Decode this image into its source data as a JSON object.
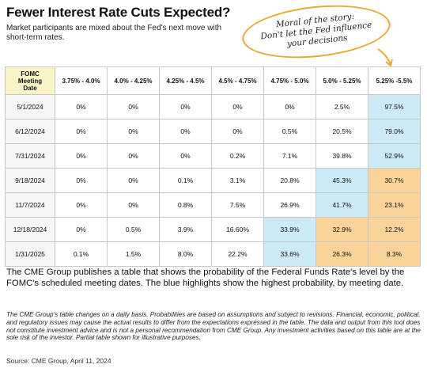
{
  "header": {
    "title": "Fewer Interest Rate Cuts Expected?",
    "subtitle": "Market participants are mixed about the Fed's next move with short-term rates."
  },
  "callout": {
    "line1": "Moral of the story:",
    "line2": "Don't let the Fed influence",
    "line3": "your decisions",
    "border_color": "#e8a93a"
  },
  "chart_data": {
    "type": "table",
    "corner_header": [
      "FOMC",
      "Meeting",
      "Date"
    ],
    "columns": [
      "3.75% - 4.0%",
      "4.0% - 4.25%",
      "4.25% - 4.5%",
      "4.5% - 4.75%",
      "4.75% - 5.0%",
      "5.0% - 5.25%",
      "5.25% -5.5%"
    ],
    "rows": [
      {
        "date": "5/1/2024",
        "values": [
          "0%",
          "0%",
          "0%",
          "0%",
          "0%",
          "2.5%",
          "97.5%"
        ],
        "highlight": [
          "",
          "",
          "",
          "",
          "",
          "",
          "blue"
        ]
      },
      {
        "date": "6/12/2024",
        "values": [
          "0%",
          "0%",
          "0%",
          "0%",
          "0.5%",
          "20.5%",
          "79.0%"
        ],
        "highlight": [
          "",
          "",
          "",
          "",
          "",
          "",
          "blue"
        ]
      },
      {
        "date": "7/31/2024",
        "values": [
          "0%",
          "0%",
          "0%",
          "0.2%",
          "7.1%",
          "39.8%",
          "52.9%"
        ],
        "highlight": [
          "",
          "",
          "",
          "",
          "",
          "",
          "blue"
        ]
      },
      {
        "date": "9/18/2024",
        "values": [
          "0%",
          "0%",
          "0.1%",
          "3.1%",
          "20.8%",
          "45.3%",
          "30.7%"
        ],
        "highlight": [
          "",
          "",
          "",
          "",
          "",
          "blue",
          "orange"
        ]
      },
      {
        "date": "11/7/2024",
        "values": [
          "0%",
          "0%",
          "0.8%",
          "7.5%",
          "26.9%",
          "41.7%",
          "23.1%"
        ],
        "highlight": [
          "",
          "",
          "",
          "",
          "",
          "blue",
          "orange"
        ]
      },
      {
        "date": "12/18/2024",
        "values": [
          "0%",
          "0.5%",
          "3.9%",
          "16.60%",
          "33.9%",
          "32.9%",
          "12.2%"
        ],
        "highlight": [
          "",
          "",
          "",
          "",
          "blue",
          "orange",
          "orange"
        ]
      },
      {
        "date": "1/31/2025",
        "values": [
          "0.1%",
          "1.5%",
          "8.0%",
          "22.2%",
          "33.6%",
          "26.3%",
          "8.3%"
        ],
        "highlight": [
          "",
          "",
          "",
          "",
          "blue",
          "orange",
          "orange"
        ]
      }
    ],
    "highlight_colors": {
      "blue": "#cdeaf7",
      "orange": "#fbd39b",
      "corner": "#fcf4c9"
    }
  },
  "body_text": "The CME Group publishes a table that shows the probability of the Federal Funds Rate's level by the FOMC's scheduled meeting dates. The blue highlights show the highest probability, by meeting date.",
  "disclaimer": "The CME Group's table changes on a daily basis. Probabilities are based on assumptions and subject to revisions. Financial, economic, political, and regulatory issues may cause the actual results to differ from the expectations expressed in the table. The data and output from this tool does not constitute investment advice and is not a personal recommendation from CME Group. Any investment activities based on this table are at the sole risk of the investor. Partial table shown for illustrative purposes.",
  "source": "Source: CME Group, April 11, 2024"
}
